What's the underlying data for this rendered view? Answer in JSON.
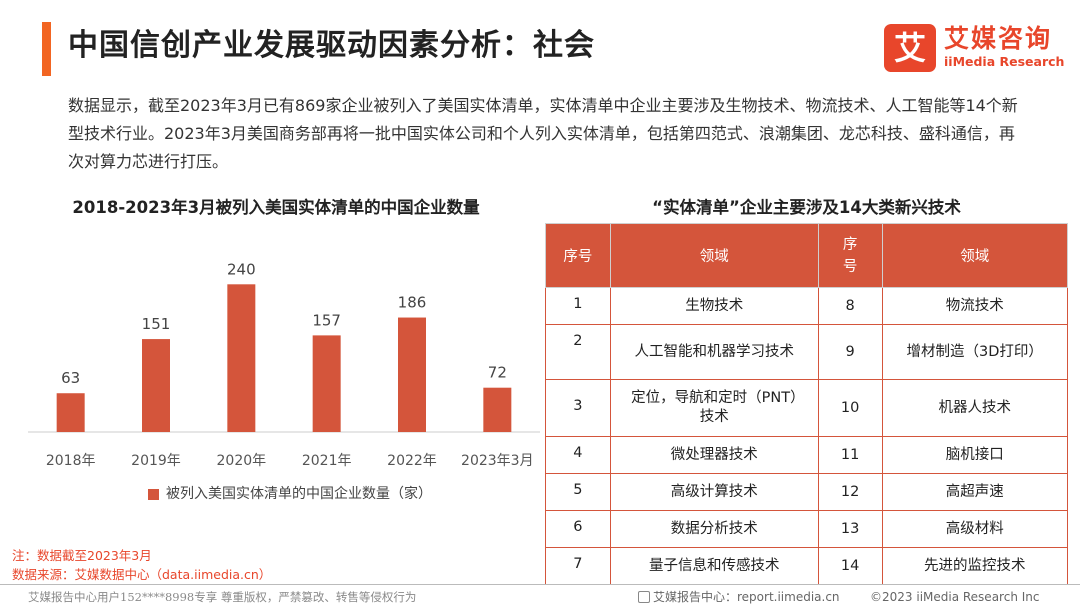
{
  "header": {
    "title": "中国信创产业发展驱动因素分析：社会",
    "logo_mark": "艾",
    "logo_cn": "艾媒咨询",
    "logo_en": "iiMedia Research"
  },
  "intro": "数据显示，截至2023年3月已有869家企业被列入了美国实体清单，实体清单中企业主要涉及生物技术、物流技术、人工智能等14个新型技术行业。2023年3月美国商务部再将一批中国实体公司和个人列入实体清单，包括第四范式、浪潮集团、龙芯科技、盛科通信，再次对算力芯进行打压。",
  "chart_data": {
    "type": "bar",
    "title": "2018-2023年3月被列入美国实体清单的中国企业数量",
    "categories": [
      "2018年",
      "2019年",
      "2020年",
      "2021年",
      "2022年",
      "2023年3月"
    ],
    "series": [
      {
        "name": "被列入美国实体清单的中国企业数量（家）",
        "values": [
          63,
          151,
          240,
          157,
          186,
          72
        ]
      }
    ],
    "ylim": [
      0,
      260
    ],
    "color": "#d4553b",
    "legend": "bottom",
    "grid": false
  },
  "table": {
    "title": "“实体清单”企业主要涉及14大类新兴技术",
    "headers": [
      "序号",
      "领域",
      "序号",
      "领域"
    ],
    "rows": [
      [
        "1",
        "生物技术",
        "8",
        "物流技术"
      ],
      [
        "2",
        "人工智能和机器学习技术",
        "9",
        "增材制造（3D打印）"
      ],
      [
        "3",
        "定位，导航和定时（PNT）技术",
        "10",
        "机器人技术"
      ],
      [
        "4",
        "微处理器技术",
        "11",
        "脑机接口"
      ],
      [
        "5",
        "高级计算技术",
        "12",
        "高超声速"
      ],
      [
        "6",
        "数据分析技术",
        "13",
        "高级材料"
      ],
      [
        "7",
        "量子信息和传感技术",
        "14",
        "先进的监控技术"
      ]
    ]
  },
  "notes": {
    "note": "注：数据截至2023年3月",
    "source": "数据来源：艾媒数据中心（data.iimedia.cn）"
  },
  "footer": {
    "left": "艾媒报告中心用户152****8998专享 尊重版权，严禁篡改、转售等侵权行为",
    "mid": "艾媒报告中心：report.iimedia.cn",
    "right": "©2023  iiMedia Research  Inc"
  },
  "colors": {
    "accent": "#f26522",
    "brand": "#e8462b",
    "bar": "#d4553b"
  }
}
